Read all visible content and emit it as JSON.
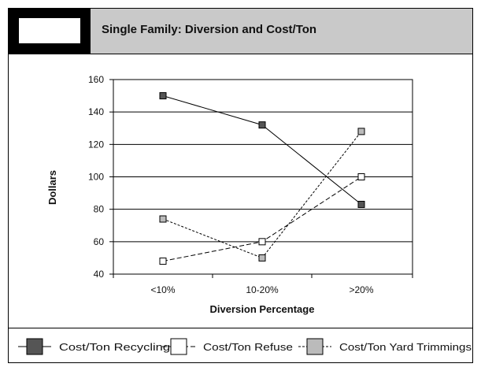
{
  "header": {
    "title": "Single Family: Diversion and Cost/Ton"
  },
  "chart_data": {
    "type": "line",
    "categories": [
      "<10%",
      "10-20%",
      ">20%"
    ],
    "xlabel": "Diversion Percentage",
    "ylabel": "Dollars",
    "ylim": [
      40,
      160
    ],
    "yticks": [
      40,
      60,
      80,
      100,
      120,
      140,
      160
    ],
    "grid": true,
    "legend_placement": "bottom",
    "series": [
      {
        "name": "Cost/Ton Recycling",
        "values": [
          150,
          132,
          83
        ],
        "color": "#555555",
        "line_style": "solid"
      },
      {
        "name": "Cost/Ton Refuse",
        "values": [
          48,
          60,
          100
        ],
        "color": "#ffffff",
        "line_style": "dash"
      },
      {
        "name": "Cost/Ton Yard Trimmings",
        "values": [
          74,
          50,
          128
        ],
        "color": "#bbbbbb",
        "line_style": "dot"
      }
    ]
  }
}
